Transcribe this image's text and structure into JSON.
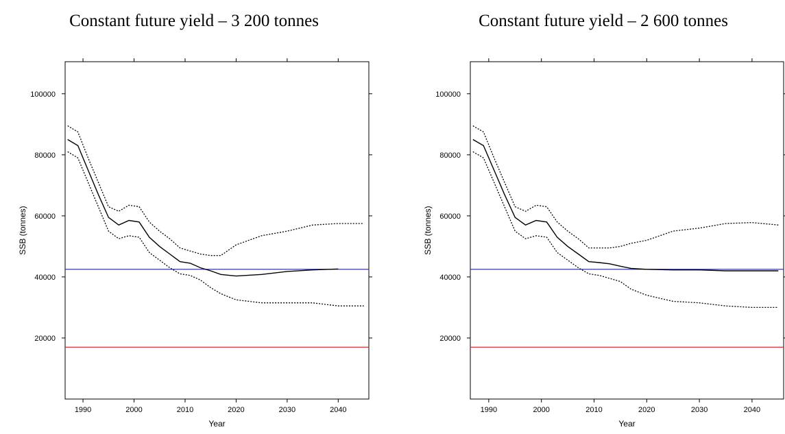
{
  "chart_data": [
    {
      "type": "line",
      "title": "Constant future yield – 3 200 tonnes",
      "x_label": "Year",
      "y_label": "SSB (tonnes)",
      "xlim": [
        1986.5,
        2046
      ],
      "ylim": [
        0,
        110500
      ],
      "xticks": [
        1990,
        2000,
        2010,
        2020,
        2030,
        2040
      ],
      "yticks": [
        20000,
        40000,
        60000,
        80000,
        100000
      ],
      "x": [
        1987,
        1989,
        1991,
        1993,
        1995,
        1997,
        1999,
        2001,
        2003,
        2005,
        2007,
        2009,
        2011,
        2013,
        2015,
        2017,
        2020,
        2025,
        2030,
        2035,
        2040,
        2045
      ],
      "series": [
        {
          "color": "#000000",
          "style": "solid",
          "values": [
            85000,
            83000,
            75000,
            67000,
            59500,
            57000,
            58500,
            58000,
            53000,
            50000,
            47500,
            45000,
            44500,
            43000,
            42000,
            40800,
            40300,
            40800,
            41800,
            42300,
            42600,
            null
          ]
        },
        {
          "color": "#000000",
          "style": "dotted",
          "values": [
            89500,
            87500,
            79000,
            71000,
            63000,
            61500,
            63500,
            63000,
            58000,
            55000,
            52500,
            49500,
            48500,
            47500,
            47000,
            47000,
            50500,
            53500,
            55000,
            57000,
            57500,
            57500
          ]
        },
        {
          "color": "#000000",
          "style": "dotted",
          "values": [
            81000,
            79000,
            71000,
            63000,
            55000,
            52500,
            53500,
            53000,
            48000,
            45500,
            43000,
            41000,
            40500,
            39000,
            36500,
            34500,
            32500,
            31500,
            31500,
            31500,
            30500,
            30500
          ]
        }
      ],
      "hlines": [
        {
          "value": 42500,
          "color": "#3a3aa0"
        },
        {
          "value": 17000,
          "color": "#d02020"
        }
      ]
    },
    {
      "type": "line",
      "title": "Constant future yield – 2 600 tonnes",
      "x_label": "Year",
      "y_label": "SSB (tonnes)",
      "xlim": [
        1986.5,
        2046
      ],
      "ylim": [
        0,
        110500
      ],
      "xticks": [
        1990,
        2000,
        2010,
        2020,
        2030,
        2040
      ],
      "yticks": [
        20000,
        40000,
        60000,
        80000,
        100000
      ],
      "x": [
        1987,
        1989,
        1991,
        1993,
        1995,
        1997,
        1999,
        2001,
        2003,
        2005,
        2007,
        2009,
        2011,
        2013,
        2015,
        2017,
        2020,
        2025,
        2030,
        2035,
        2040,
        2045
      ],
      "series": [
        {
          "color": "#000000",
          "style": "solid",
          "values": [
            85000,
            83000,
            75000,
            67000,
            59500,
            57000,
            58500,
            58000,
            53000,
            50000,
            47500,
            45000,
            44700,
            44300,
            43500,
            42800,
            42500,
            42300,
            42300,
            42000,
            42000,
            42000
          ]
        },
        {
          "color": "#000000",
          "style": "dotted",
          "values": [
            89500,
            87500,
            79000,
            71000,
            63000,
            61500,
            63500,
            63000,
            58000,
            55000,
            52500,
            49500,
            49500,
            49500,
            50000,
            51000,
            52000,
            55000,
            56000,
            57500,
            57800,
            57000
          ]
        },
        {
          "color": "#000000",
          "style": "dotted",
          "values": [
            81000,
            79000,
            71000,
            63000,
            55000,
            52500,
            53500,
            53000,
            48000,
            45500,
            43000,
            41000,
            40500,
            39500,
            38500,
            36000,
            34000,
            32000,
            31500,
            30500,
            30000,
            30000
          ]
        }
      ],
      "hlines": [
        {
          "value": 42500,
          "color": "#3a3aa0"
        },
        {
          "value": 17000,
          "color": "#d02020"
        }
      ]
    }
  ]
}
